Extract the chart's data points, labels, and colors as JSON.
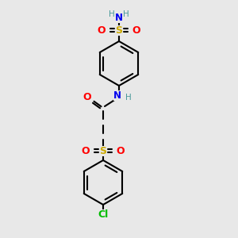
{
  "background_color": "#e8e8e8",
  "atom_colors": {
    "C": "#000000",
    "H": "#4a9a9a",
    "N": "#0000ee",
    "O": "#ff0000",
    "S": "#ccaa00",
    "Cl": "#00bb00"
  },
  "figsize": [
    3.0,
    3.0
  ],
  "dpi": 100,
  "xlim": [
    0,
    300
  ],
  "ylim": [
    0,
    300
  ]
}
